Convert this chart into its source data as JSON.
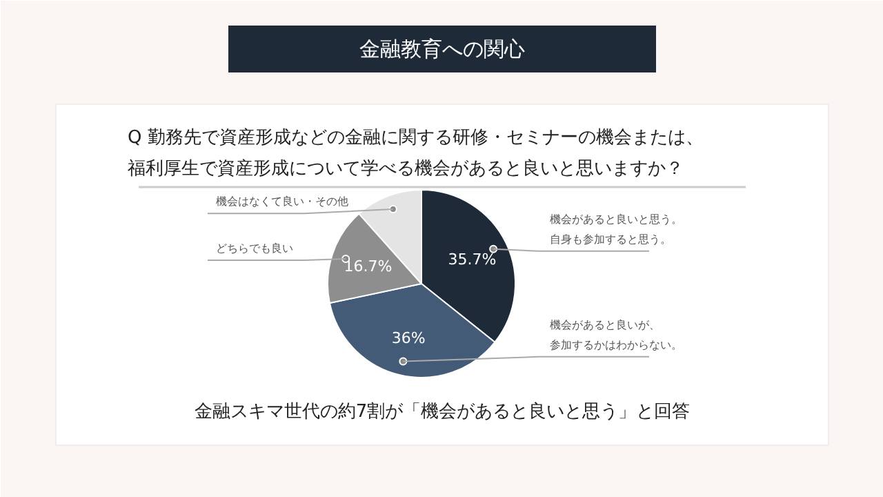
{
  "chart_data": {
    "type": "pie",
    "title": "金融教育への関心",
    "subtitle": "Q 勤務先で資産形成などの金融に関する研修・セミナーの機会または、福利厚生で資産形成について学べる機会があると良いと思いますか？",
    "categories": [
      "機会があると良いと思う。自身も参加すると思う。",
      "機会があると良いが、参加するかはわからない。",
      "どちらでも良い",
      "機会はなくて良い・その他"
    ],
    "values": [
      35.7,
      36,
      16.7,
      11.6
    ],
    "value_labels": [
      "35.7%",
      "36%",
      "16.7%",
      null
    ],
    "colors": [
      "#1f2a38",
      "#435b76",
      "#8e8e8e",
      "#e4e4e4"
    ],
    "annotations": [
      "金融スキマ世代の約7割が「機会があると良いと思う」と回答"
    ]
  }
}
